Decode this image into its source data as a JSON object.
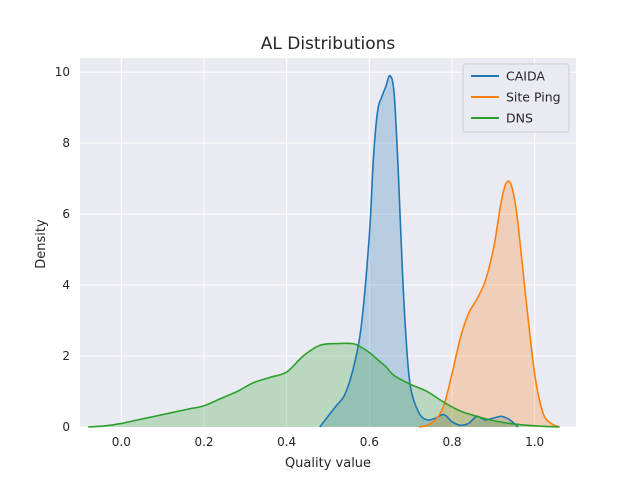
{
  "chart_data": {
    "type": "area",
    "title": "AL Distributions",
    "xlabel": "Quality value",
    "ylabel": "Density",
    "xlim": [
      -0.1,
      1.1
    ],
    "ylim": [
      0,
      10.4
    ],
    "xticks": [
      "0.0",
      "0.2",
      "0.4",
      "0.6",
      "0.8",
      "1.0"
    ],
    "yticks": [
      "0",
      "2",
      "4",
      "6",
      "8",
      "10"
    ],
    "grid": true,
    "legend_position": "top-right",
    "series": [
      {
        "name": "CAIDA",
        "color": "#1f77b4",
        "x": [
          0.48,
          0.5,
          0.52,
          0.54,
          0.56,
          0.58,
          0.6,
          0.61,
          0.62,
          0.63,
          0.64,
          0.65,
          0.66,
          0.67,
          0.68,
          0.69,
          0.7,
          0.72,
          0.74,
          0.76,
          0.78,
          0.8,
          0.82,
          0.84,
          0.86,
          0.88,
          0.9,
          0.92,
          0.94,
          0.96
        ],
        "y": [
          0.0,
          0.3,
          0.6,
          0.9,
          1.6,
          2.8,
          5.4,
          7.6,
          8.9,
          9.3,
          9.6,
          9.9,
          9.4,
          7.2,
          4.4,
          2.3,
          1.1,
          0.4,
          0.2,
          0.25,
          0.35,
          0.15,
          0.05,
          0.1,
          0.3,
          0.2,
          0.25,
          0.3,
          0.2,
          0.0
        ]
      },
      {
        "name": "Site Ping",
        "color": "#ff7f0e",
        "x": [
          0.72,
          0.74,
          0.76,
          0.78,
          0.8,
          0.82,
          0.84,
          0.86,
          0.88,
          0.9,
          0.91,
          0.92,
          0.93,
          0.94,
          0.95,
          0.96,
          0.98,
          1.0,
          1.02,
          1.04,
          1.06
        ],
        "y": [
          0.0,
          0.05,
          0.2,
          0.6,
          1.5,
          2.5,
          3.2,
          3.6,
          4.1,
          5.0,
          5.7,
          6.4,
          6.85,
          6.9,
          6.5,
          5.7,
          3.5,
          1.5,
          0.4,
          0.1,
          0.0
        ]
      },
      {
        "name": "DNS",
        "color": "#2ca02c",
        "x": [
          -0.08,
          -0.04,
          0.0,
          0.04,
          0.08,
          0.12,
          0.16,
          0.2,
          0.24,
          0.28,
          0.32,
          0.36,
          0.4,
          0.44,
          0.48,
          0.52,
          0.56,
          0.58,
          0.6,
          0.62,
          0.64,
          0.66,
          0.7,
          0.74,
          0.78,
          0.82,
          0.86,
          0.9,
          0.94,
          0.98,
          1.02,
          1.06
        ],
        "y": [
          0.0,
          0.03,
          0.1,
          0.2,
          0.3,
          0.4,
          0.5,
          0.6,
          0.8,
          1.0,
          1.25,
          1.4,
          1.55,
          2.0,
          2.3,
          2.35,
          2.35,
          2.25,
          2.1,
          1.9,
          1.7,
          1.45,
          1.2,
          1.0,
          0.7,
          0.45,
          0.3,
          0.18,
          0.1,
          0.05,
          0.02,
          0.0
        ]
      }
    ]
  }
}
